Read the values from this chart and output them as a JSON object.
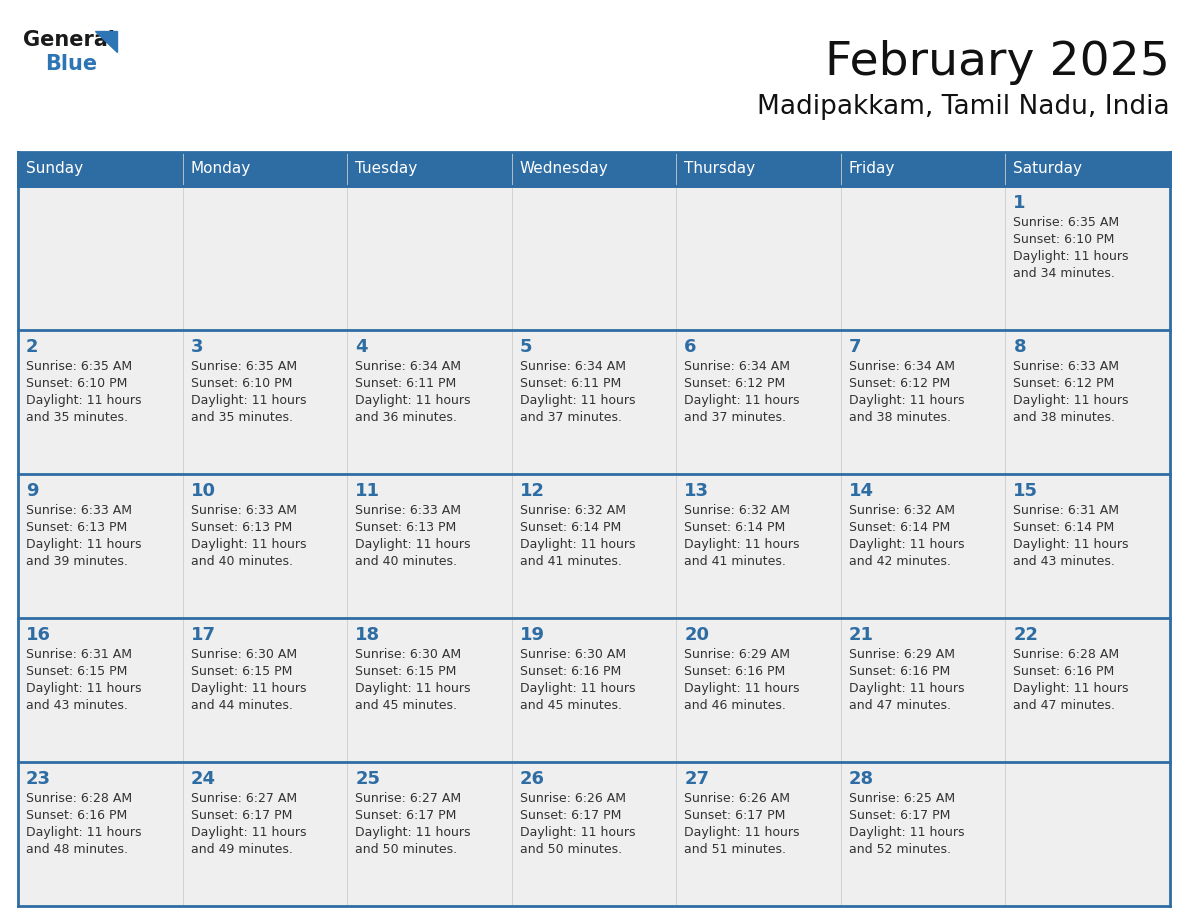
{
  "title": "February 2025",
  "subtitle": "Madipakkam, Tamil Nadu, India",
  "header_bg": "#2E6DA4",
  "header_text_color": "#FFFFFF",
  "day_names": [
    "Sunday",
    "Monday",
    "Tuesday",
    "Wednesday",
    "Thursday",
    "Friday",
    "Saturday"
  ],
  "bg_color": "#FFFFFF",
  "cell_bg_odd": "#EFEFEF",
  "cell_bg_even": "#FFFFFF",
  "border_color": "#2E6DA4",
  "date_color": "#2E6DA4",
  "info_color": "#333333",
  "logo_general_color": "#1a1a1a",
  "logo_blue_color": "#2E75B6",
  "calendar": [
    [
      null,
      null,
      null,
      null,
      null,
      null,
      1
    ],
    [
      2,
      3,
      4,
      5,
      6,
      7,
      8
    ],
    [
      9,
      10,
      11,
      12,
      13,
      14,
      15
    ],
    [
      16,
      17,
      18,
      19,
      20,
      21,
      22
    ],
    [
      23,
      24,
      25,
      26,
      27,
      28,
      null
    ]
  ],
  "sun_data": {
    "1": {
      "rise": "6:35 AM",
      "set": "6:10 PM",
      "day": "11 hours and 34 minutes."
    },
    "2": {
      "rise": "6:35 AM",
      "set": "6:10 PM",
      "day": "11 hours and 35 minutes."
    },
    "3": {
      "rise": "6:35 AM",
      "set": "6:10 PM",
      "day": "11 hours and 35 minutes."
    },
    "4": {
      "rise": "6:34 AM",
      "set": "6:11 PM",
      "day": "11 hours and 36 minutes."
    },
    "5": {
      "rise": "6:34 AM",
      "set": "6:11 PM",
      "day": "11 hours and 37 minutes."
    },
    "6": {
      "rise": "6:34 AM",
      "set": "6:12 PM",
      "day": "11 hours and 37 minutes."
    },
    "7": {
      "rise": "6:34 AM",
      "set": "6:12 PM",
      "day": "11 hours and 38 minutes."
    },
    "8": {
      "rise": "6:33 AM",
      "set": "6:12 PM",
      "day": "11 hours and 38 minutes."
    },
    "9": {
      "rise": "6:33 AM",
      "set": "6:13 PM",
      "day": "11 hours and 39 minutes."
    },
    "10": {
      "rise": "6:33 AM",
      "set": "6:13 PM",
      "day": "11 hours and 40 minutes."
    },
    "11": {
      "rise": "6:33 AM",
      "set": "6:13 PM",
      "day": "11 hours and 40 minutes."
    },
    "12": {
      "rise": "6:32 AM",
      "set": "6:14 PM",
      "day": "11 hours and 41 minutes."
    },
    "13": {
      "rise": "6:32 AM",
      "set": "6:14 PM",
      "day": "11 hours and 41 minutes."
    },
    "14": {
      "rise": "6:32 AM",
      "set": "6:14 PM",
      "day": "11 hours and 42 minutes."
    },
    "15": {
      "rise": "6:31 AM",
      "set": "6:14 PM",
      "day": "11 hours and 43 minutes."
    },
    "16": {
      "rise": "6:31 AM",
      "set": "6:15 PM",
      "day": "11 hours and 43 minutes."
    },
    "17": {
      "rise": "6:30 AM",
      "set": "6:15 PM",
      "day": "11 hours and 44 minutes."
    },
    "18": {
      "rise": "6:30 AM",
      "set": "6:15 PM",
      "day": "11 hours and 45 minutes."
    },
    "19": {
      "rise": "6:30 AM",
      "set": "6:16 PM",
      "day": "11 hours and 45 minutes."
    },
    "20": {
      "rise": "6:29 AM",
      "set": "6:16 PM",
      "day": "11 hours and 46 minutes."
    },
    "21": {
      "rise": "6:29 AM",
      "set": "6:16 PM",
      "day": "11 hours and 47 minutes."
    },
    "22": {
      "rise": "6:28 AM",
      "set": "6:16 PM",
      "day": "11 hours and 47 minutes."
    },
    "23": {
      "rise": "6:28 AM",
      "set": "6:16 PM",
      "day": "11 hours and 48 minutes."
    },
    "24": {
      "rise": "6:27 AM",
      "set": "6:17 PM",
      "day": "11 hours and 49 minutes."
    },
    "25": {
      "rise": "6:27 AM",
      "set": "6:17 PM",
      "day": "11 hours and 50 minutes."
    },
    "26": {
      "rise": "6:26 AM",
      "set": "6:17 PM",
      "day": "11 hours and 50 minutes."
    },
    "27": {
      "rise": "6:26 AM",
      "set": "6:17 PM",
      "day": "11 hours and 51 minutes."
    },
    "28": {
      "rise": "6:25 AM",
      "set": "6:17 PM",
      "day": "11 hours and 52 minutes."
    }
  },
  "fig_width": 11.88,
  "fig_height": 9.18,
  "dpi": 100
}
